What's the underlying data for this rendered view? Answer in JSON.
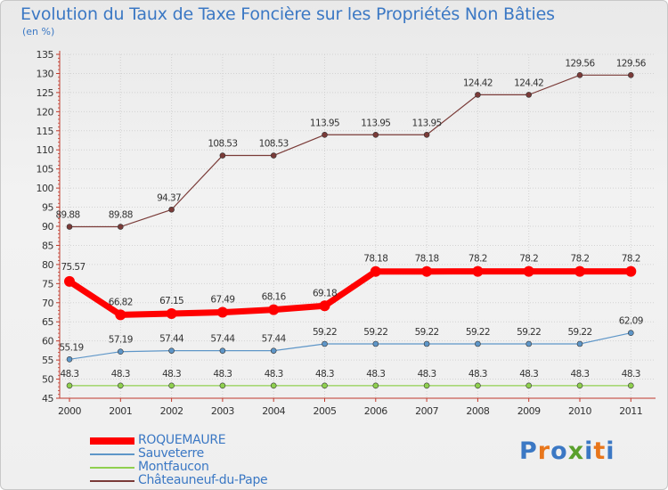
{
  "title": "Evolution du Taux de Taxe Foncière sur les Propriétés Non Bâties",
  "unit_label": "(en %)",
  "logo": {
    "text": "Proxiti",
    "letters": [
      "P",
      "r",
      "o",
      "x",
      "i",
      "t",
      "i"
    ],
    "colors": [
      "#3b78c4",
      "#e8761b",
      "#3b78c4",
      "#5aa02c",
      "#3b78c4",
      "#e8761b",
      "#3b78c4"
    ]
  },
  "chart_data": {
    "type": "line",
    "x": [
      "2000",
      "2001",
      "2002",
      "2003",
      "2004",
      "2005",
      "2006",
      "2007",
      "2008",
      "2009",
      "2010",
      "2011"
    ],
    "ylim": [
      45,
      135
    ],
    "yticks": [
      45,
      50,
      55,
      60,
      65,
      70,
      75,
      80,
      85,
      90,
      95,
      100,
      105,
      110,
      115,
      120,
      125,
      130,
      135
    ],
    "grid": true,
    "series": [
      {
        "name": "ROQUEMAURE",
        "color": "#ff0000",
        "width": 7,
        "marker": 6,
        "values": [
          75.57,
          66.82,
          67.15,
          67.49,
          68.16,
          69.18,
          78.18,
          78.18,
          78.2,
          78.2,
          78.2,
          78.2
        ],
        "labels": [
          "75.57",
          "66.82",
          "67.15",
          "67.49",
          "68.16",
          "69.18",
          "78.18",
          "78.18",
          "78.2",
          "78.2",
          "78.2",
          "78.2"
        ]
      },
      {
        "name": "Sauveterre",
        "color": "#5e96c8",
        "width": 1.2,
        "marker": 3,
        "values": [
          55.19,
          57.19,
          57.44,
          57.44,
          57.44,
          59.22,
          59.22,
          59.22,
          59.22,
          59.22,
          59.22,
          62.09
        ],
        "labels": [
          "55.19",
          "57.19",
          "57.44",
          "57.44",
          "57.44",
          "59.22",
          "59.22",
          "59.22",
          "59.22",
          "59.22",
          "59.22",
          "62.09"
        ]
      },
      {
        "name": "Montfaucon",
        "color": "#8fd04f",
        "width": 1.2,
        "marker": 3,
        "values": [
          48.3,
          48.3,
          48.3,
          48.3,
          48.3,
          48.3,
          48.3,
          48.3,
          48.3,
          48.3,
          48.3,
          48.3
        ],
        "labels": [
          "48.3",
          "48.3",
          "48.3",
          "48.3",
          "48.3",
          "48.3",
          "48.3",
          "48.3",
          "48.3",
          "48.3",
          "48.3",
          "48.3"
        ]
      },
      {
        "name": "Châteauneuf-du-Pape",
        "color": "#7a3b38",
        "width": 1.2,
        "marker": 3,
        "values": [
          89.88,
          89.88,
          94.37,
          108.53,
          108.53,
          113.95,
          113.95,
          113.95,
          124.42,
          124.42,
          129.56,
          129.56
        ],
        "labels": [
          "89.88",
          "89.88",
          "94.37",
          "108.53",
          "108.53",
          "113.95",
          "113.95",
          "113.95",
          "124.42",
          "124.42",
          "129.56",
          "129.56"
        ]
      }
    ]
  }
}
